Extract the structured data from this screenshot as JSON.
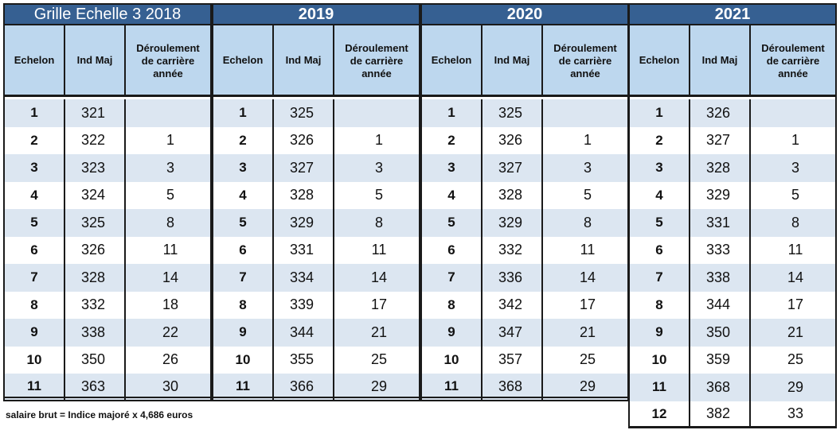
{
  "note": "salaire brut = Indice majoré x 4,686 euros",
  "columns": {
    "echelon": "Echelon",
    "ind_maj": "Ind Maj",
    "deroulement": "Déroulement\nde carrière\nannée"
  },
  "grids": [
    {
      "title": "Grille Echelle 3  2018",
      "rows": [
        {
          "echelon": "1",
          "ind": "321",
          "der": ""
        },
        {
          "echelon": "2",
          "ind": "322",
          "der": "1"
        },
        {
          "echelon": "3",
          "ind": "323",
          "der": "3"
        },
        {
          "echelon": "4",
          "ind": "324",
          "der": "5"
        },
        {
          "echelon": "5",
          "ind": "325",
          "der": "8"
        },
        {
          "echelon": "6",
          "ind": "326",
          "der": "11"
        },
        {
          "echelon": "7",
          "ind": "328",
          "der": "14"
        },
        {
          "echelon": "8",
          "ind": "332",
          "der": "18"
        },
        {
          "echelon": "9",
          "ind": "338",
          "der": "22"
        },
        {
          "echelon": "10",
          "ind": "350",
          "der": "26"
        },
        {
          "echelon": "11",
          "ind": "363",
          "der": "30"
        }
      ]
    },
    {
      "title": "2019",
      "rows": [
        {
          "echelon": "1",
          "ind": "325",
          "der": ""
        },
        {
          "echelon": "2",
          "ind": "326",
          "der": "1"
        },
        {
          "echelon": "3",
          "ind": "327",
          "der": "3"
        },
        {
          "echelon": "4",
          "ind": "328",
          "der": "5"
        },
        {
          "echelon": "5",
          "ind": "329",
          "der": "8"
        },
        {
          "echelon": "6",
          "ind": "331",
          "der": "11"
        },
        {
          "echelon": "7",
          "ind": "334",
          "der": "14"
        },
        {
          "echelon": "8",
          "ind": "339",
          "der": "17"
        },
        {
          "echelon": "9",
          "ind": "344",
          "der": "21"
        },
        {
          "echelon": "10",
          "ind": "355",
          "der": "25"
        },
        {
          "echelon": "11",
          "ind": "366",
          "der": "29"
        }
      ]
    },
    {
      "title": "2020",
      "rows": [
        {
          "echelon": "1",
          "ind": "325",
          "der": ""
        },
        {
          "echelon": "2",
          "ind": "326",
          "der": "1"
        },
        {
          "echelon": "3",
          "ind": "327",
          "der": "3"
        },
        {
          "echelon": "4",
          "ind": "328",
          "der": "5"
        },
        {
          "echelon": "5",
          "ind": "329",
          "der": "8"
        },
        {
          "echelon": "6",
          "ind": "332",
          "der": "11"
        },
        {
          "echelon": "7",
          "ind": "336",
          "der": "14"
        },
        {
          "echelon": "8",
          "ind": "342",
          "der": "17"
        },
        {
          "echelon": "9",
          "ind": "347",
          "der": "21"
        },
        {
          "echelon": "10",
          "ind": "357",
          "der": "25"
        },
        {
          "echelon": "11",
          "ind": "368",
          "der": "29"
        }
      ]
    },
    {
      "title": "2021",
      "rows": [
        {
          "echelon": "1",
          "ind": "326",
          "der": ""
        },
        {
          "echelon": "2",
          "ind": "327",
          "der": "1"
        },
        {
          "echelon": "3",
          "ind": "328",
          "der": "3"
        },
        {
          "echelon": "4",
          "ind": "329",
          "der": "5"
        },
        {
          "echelon": "5",
          "ind": "331",
          "der": "8"
        },
        {
          "echelon": "6",
          "ind": "333",
          "der": "11"
        },
        {
          "echelon": "7",
          "ind": "338",
          "der": "14"
        },
        {
          "echelon": "8",
          "ind": "344",
          "der": "17"
        },
        {
          "echelon": "9",
          "ind": "350",
          "der": "21"
        },
        {
          "echelon": "10",
          "ind": "359",
          "der": "25"
        },
        {
          "echelon": "11",
          "ind": "368",
          "der": "29"
        },
        {
          "echelon": "12",
          "ind": "382",
          "der": "33"
        }
      ]
    }
  ]
}
